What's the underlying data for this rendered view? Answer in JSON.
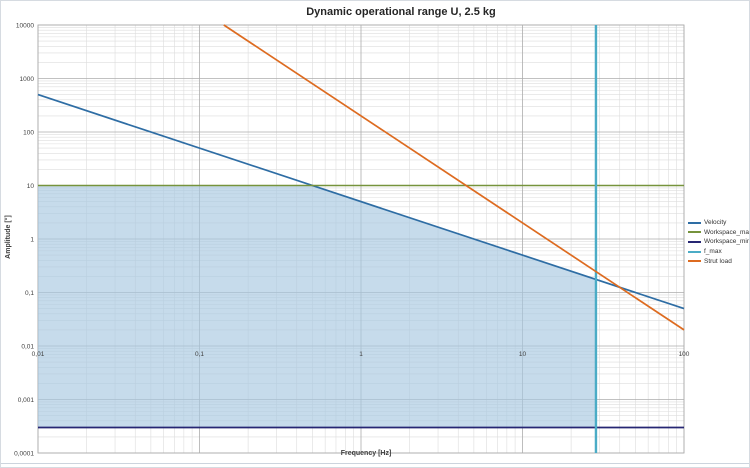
{
  "title": "Dynamic operational range U, 2.5 kg",
  "chart_data": {
    "type": "line",
    "scale": "log-log",
    "xlabel": "Frequency [Hz]",
    "ylabel": "Amplitude [°]",
    "xlim": [
      0.01,
      100
    ],
    "ylim": [
      0.0001,
      10000
    ],
    "grid": {
      "major": true,
      "minor": true
    },
    "legend_position": "right",
    "x_ticks": [
      {
        "value": 0.01,
        "label": "0,01"
      },
      {
        "value": 0.1,
        "label": "0,1"
      },
      {
        "value": 1,
        "label": "1"
      },
      {
        "value": 10,
        "label": "10"
      },
      {
        "value": 100,
        "label": "100"
      }
    ],
    "y_ticks": [
      {
        "value": 10000,
        "label": "10000"
      },
      {
        "value": 1000,
        "label": "1000"
      },
      {
        "value": 100,
        "label": "100"
      },
      {
        "value": 10,
        "label": "10"
      },
      {
        "value": 1,
        "label": "1"
      },
      {
        "value": 0.1,
        "label": "0,1"
      },
      {
        "value": 0.01,
        "label": "0,01"
      },
      {
        "value": 0.001,
        "label": "0,001"
      },
      {
        "value": 0.0001,
        "label": "0,0001"
      }
    ],
    "series": [
      {
        "name": "Velocity",
        "color": "#2E6DA4",
        "points": [
          [
            0.01,
            500
          ],
          [
            100,
            0.05
          ]
        ]
      },
      {
        "name": "Workspace_max",
        "color": "#76933C",
        "points": [
          [
            0.01,
            10
          ],
          [
            100,
            10
          ]
        ]
      },
      {
        "name": "Workspace_min",
        "color": "#262673",
        "points": [
          [
            0.01,
            0.0003
          ],
          [
            100,
            0.0003
          ]
        ]
      },
      {
        "name": "f_max",
        "color": "#4BACC6",
        "points": [
          [
            28.5,
            0.0001
          ],
          [
            28.5,
            10000
          ]
        ]
      },
      {
        "name": "Strut load",
        "color": "#DD6B20",
        "points": [
          [
            0.1414,
            10000
          ],
          [
            100,
            0.02
          ]
        ]
      }
    ],
    "operational_range": {
      "fill_color": "#A8C8E0",
      "opacity": 0.65,
      "points": [
        [
          0.01,
          0.0003
        ],
        [
          0.01,
          10
        ],
        [
          0.5,
          10
        ],
        [
          28.5,
          0.175
        ],
        [
          28.5,
          0.0003
        ]
      ]
    },
    "grid_colors": {
      "major": "#ADADAD",
      "minor": "#DDDDDD",
      "border": "#ADADAD"
    }
  }
}
